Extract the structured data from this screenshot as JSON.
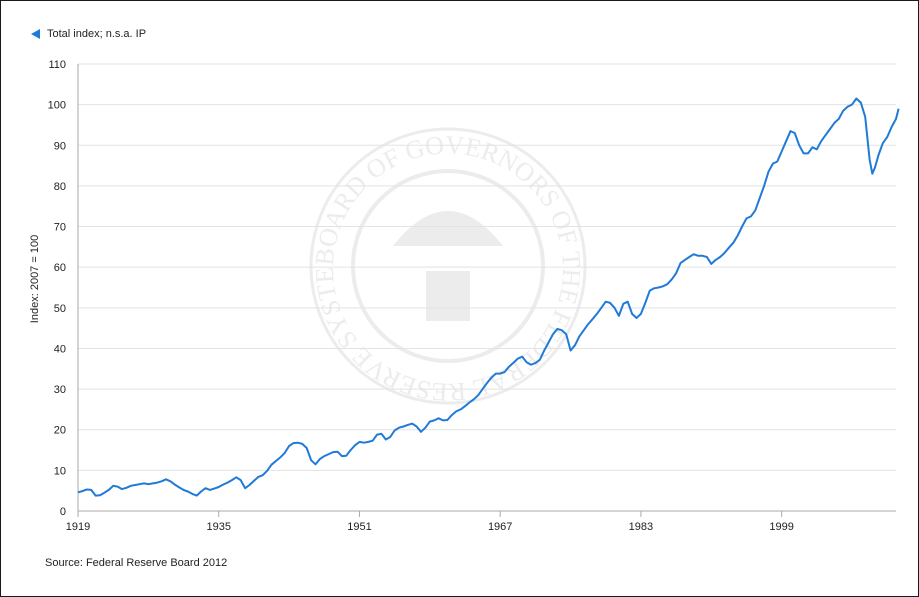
{
  "legend": {
    "label": "Total index; n.s.a. IP",
    "marker_icon": "triangle-left-icon"
  },
  "source": "Source: Federal Reserve Board 2012",
  "watermark": {
    "text": "BOARD OF GOVERNORS OF THE FEDERAL RESERVE SYSTEM",
    "icon": "federal-reserve-seal-icon"
  },
  "colors": {
    "series": "#1f7ad8",
    "grid": "#e3e3e3",
    "axis": "#aaaaaa",
    "text": "#222222",
    "seal": "#ececec"
  },
  "chart_data": {
    "type": "line",
    "title": "",
    "xlabel": "",
    "ylabel": "Index: 2007 = 100",
    "xlim": [
      1919,
      2012
    ],
    "ylim": [
      0,
      110
    ],
    "x_ticks": [
      1919,
      1935,
      1951,
      1967,
      1983,
      1999
    ],
    "y_ticks": [
      0,
      10,
      20,
      30,
      40,
      50,
      60,
      70,
      80,
      90,
      100,
      110
    ],
    "grid": true,
    "legend_position": "top-left",
    "series": [
      {
        "name": "Total index; n.s.a. IP",
        "points": [
          [
            1919,
            4.6
          ],
          [
            1919.5,
            4.9
          ],
          [
            1920,
            5.3
          ],
          [
            1920.5,
            5.2
          ],
          [
            1921,
            3.8
          ],
          [
            1921.5,
            3.9
          ],
          [
            1922,
            4.5
          ],
          [
            1922.5,
            5.2
          ],
          [
            1923,
            6.2
          ],
          [
            1923.5,
            6.0
          ],
          [
            1924,
            5.4
          ],
          [
            1924.5,
            5.7
          ],
          [
            1925,
            6.2
          ],
          [
            1925.5,
            6.4
          ],
          [
            1926,
            6.6
          ],
          [
            1926.5,
            6.8
          ],
          [
            1927,
            6.6
          ],
          [
            1927.5,
            6.8
          ],
          [
            1928,
            7.0
          ],
          [
            1928.5,
            7.3
          ],
          [
            1929,
            7.8
          ],
          [
            1929.5,
            7.3
          ],
          [
            1930,
            6.5
          ],
          [
            1930.5,
            5.8
          ],
          [
            1931,
            5.2
          ],
          [
            1931.5,
            4.8
          ],
          [
            1932,
            4.2
          ],
          [
            1932.5,
            3.8
          ],
          [
            1933,
            4.8
          ],
          [
            1933.5,
            5.6
          ],
          [
            1934,
            5.2
          ],
          [
            1934.5,
            5.5
          ],
          [
            1935,
            5.9
          ],
          [
            1935.5,
            6.5
          ],
          [
            1936,
            7.0
          ],
          [
            1936.5,
            7.6
          ],
          [
            1937,
            8.3
          ],
          [
            1937.5,
            7.6
          ],
          [
            1938,
            5.6
          ],
          [
            1938.5,
            6.4
          ],
          [
            1939,
            7.4
          ],
          [
            1939.5,
            8.4
          ],
          [
            1940,
            8.8
          ],
          [
            1940.5,
            9.9
          ],
          [
            1941,
            11.4
          ],
          [
            1941.5,
            12.3
          ],
          [
            1942,
            13.2
          ],
          [
            1942.5,
            14.3
          ],
          [
            1943,
            16.0
          ],
          [
            1943.5,
            16.7
          ],
          [
            1944,
            16.8
          ],
          [
            1944.5,
            16.5
          ],
          [
            1945,
            15.5
          ],
          [
            1945.5,
            12.5
          ],
          [
            1946,
            11.5
          ],
          [
            1946.5,
            12.8
          ],
          [
            1947,
            13.5
          ],
          [
            1947.5,
            14.0
          ],
          [
            1948,
            14.5
          ],
          [
            1948.5,
            14.6
          ],
          [
            1949,
            13.5
          ],
          [
            1949.5,
            13.6
          ],
          [
            1950,
            15.0
          ],
          [
            1950.5,
            16.2
          ],
          [
            1951,
            17.0
          ],
          [
            1951.5,
            16.8
          ],
          [
            1952,
            17.0
          ],
          [
            1952.5,
            17.3
          ],
          [
            1953,
            18.8
          ],
          [
            1953.5,
            19.0
          ],
          [
            1954,
            17.6
          ],
          [
            1954.5,
            18.2
          ],
          [
            1955,
            19.8
          ],
          [
            1955.5,
            20.5
          ],
          [
            1956,
            20.8
          ],
          [
            1956.5,
            21.2
          ],
          [
            1957,
            21.5
          ],
          [
            1957.5,
            20.8
          ],
          [
            1958,
            19.5
          ],
          [
            1958.5,
            20.5
          ],
          [
            1959,
            22.0
          ],
          [
            1959.5,
            22.3
          ],
          [
            1960,
            22.8
          ],
          [
            1960.5,
            22.3
          ],
          [
            1961,
            22.4
          ],
          [
            1961.5,
            23.6
          ],
          [
            1962,
            24.5
          ],
          [
            1962.5,
            25.0
          ],
          [
            1963,
            25.8
          ],
          [
            1963.5,
            26.7
          ],
          [
            1964,
            27.5
          ],
          [
            1964.5,
            28.5
          ],
          [
            1965,
            30.0
          ],
          [
            1965.5,
            31.5
          ],
          [
            1966,
            32.8
          ],
          [
            1966.5,
            33.8
          ],
          [
            1967,
            33.8
          ],
          [
            1967.5,
            34.2
          ],
          [
            1968,
            35.5
          ],
          [
            1968.5,
            36.5
          ],
          [
            1969,
            37.5
          ],
          [
            1969.5,
            38.0
          ],
          [
            1970,
            36.6
          ],
          [
            1970.5,
            36.0
          ],
          [
            1971,
            36.4
          ],
          [
            1971.5,
            37.2
          ],
          [
            1972,
            39.5
          ],
          [
            1972.5,
            41.5
          ],
          [
            1973,
            43.5
          ],
          [
            1973.5,
            44.8
          ],
          [
            1974,
            44.5
          ],
          [
            1974.5,
            43.5
          ],
          [
            1975,
            39.5
          ],
          [
            1975.5,
            40.8
          ],
          [
            1976,
            43.0
          ],
          [
            1976.5,
            44.5
          ],
          [
            1977,
            46.0
          ],
          [
            1977.5,
            47.2
          ],
          [
            1978,
            48.5
          ],
          [
            1978.5,
            50.0
          ],
          [
            1979,
            51.5
          ],
          [
            1979.5,
            51.2
          ],
          [
            1980,
            50.0
          ],
          [
            1980.5,
            48.0
          ],
          [
            1981,
            51.0
          ],
          [
            1981.5,
            51.5
          ],
          [
            1982,
            48.5
          ],
          [
            1982.5,
            47.5
          ],
          [
            1983,
            48.5
          ],
          [
            1983.5,
            51.2
          ],
          [
            1984,
            54.2
          ],
          [
            1984.5,
            54.8
          ],
          [
            1985,
            55.0
          ],
          [
            1985.5,
            55.3
          ],
          [
            1986,
            55.8
          ],
          [
            1986.5,
            57.0
          ],
          [
            1987,
            58.5
          ],
          [
            1987.5,
            61.0
          ],
          [
            1988,
            61.8
          ],
          [
            1988.5,
            62.5
          ],
          [
            1989,
            63.2
          ],
          [
            1989.5,
            62.8
          ],
          [
            1990,
            62.8
          ],
          [
            1990.5,
            62.5
          ],
          [
            1991,
            60.8
          ],
          [
            1991.5,
            61.8
          ],
          [
            1992,
            62.5
          ],
          [
            1992.5,
            63.5
          ],
          [
            1993,
            64.8
          ],
          [
            1993.5,
            66.0
          ],
          [
            1994,
            67.8
          ],
          [
            1994.5,
            70.0
          ],
          [
            1995,
            72.0
          ],
          [
            1995.5,
            72.5
          ],
          [
            1996,
            74.0
          ],
          [
            1996.5,
            77.0
          ],
          [
            1997,
            80.0
          ],
          [
            1997.5,
            83.5
          ],
          [
            1998,
            85.5
          ],
          [
            1998.5,
            86.0
          ],
          [
            1999,
            88.5
          ],
          [
            1999.5,
            91.0
          ],
          [
            2000,
            93.5
          ],
          [
            2000.5,
            93.0
          ],
          [
            2001,
            90.0
          ],
          [
            2001.5,
            88.0
          ],
          [
            2002,
            88.0
          ],
          [
            2002.5,
            89.5
          ],
          [
            2003,
            89.0
          ],
          [
            2003.5,
            91.0
          ],
          [
            2004,
            92.5
          ],
          [
            2004.5,
            94.0
          ],
          [
            2005,
            95.5
          ],
          [
            2005.5,
            96.5
          ],
          [
            2006,
            98.5
          ],
          [
            2006.5,
            99.5
          ],
          [
            2007,
            100.0
          ],
          [
            2007.5,
            101.5
          ],
          [
            2008,
            100.5
          ],
          [
            2008.5,
            97.0
          ],
          [
            2009,
            86.5
          ],
          [
            2009.3,
            83.0
          ],
          [
            2009.6,
            84.5
          ],
          [
            2010,
            87.5
          ],
          [
            2010.5,
            90.5
          ],
          [
            2011,
            92.0
          ],
          [
            2011.5,
            94.5
          ],
          [
            2012,
            96.5
          ],
          [
            2012.3,
            99.0
          ]
        ]
      }
    ]
  }
}
